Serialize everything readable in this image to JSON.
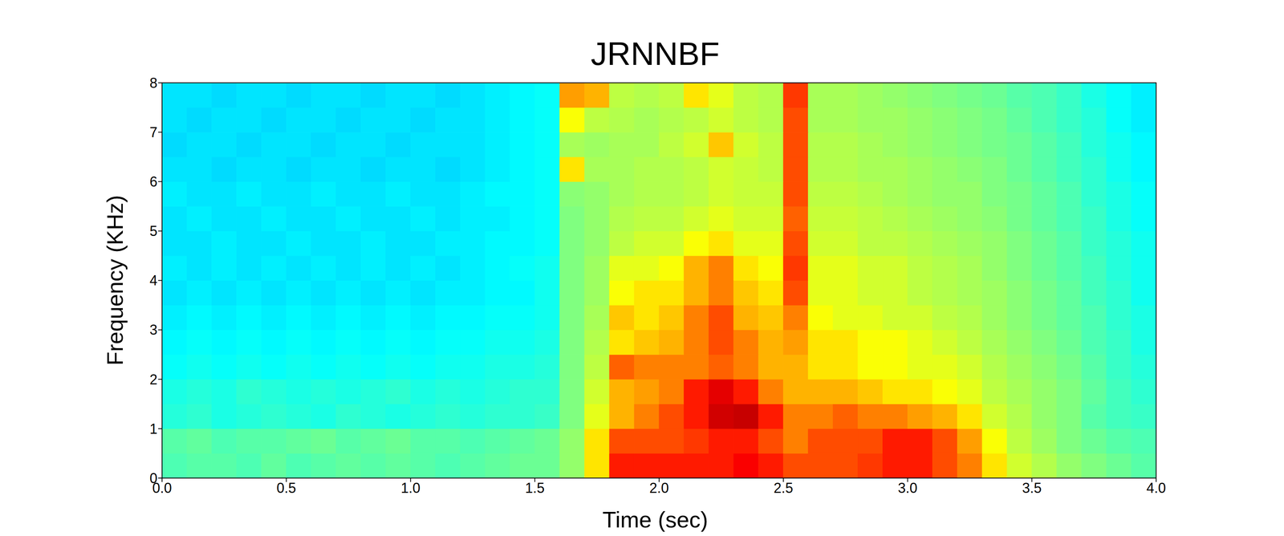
{
  "chart_data": {
    "type": "heatmap",
    "title": "JRNNBF",
    "x_label": "Time (sec)",
    "y_label": "Frequency (KHz)",
    "xlim": [
      0,
      4
    ],
    "ylim": [
      0,
      8
    ],
    "xticks": [
      {
        "value": 0,
        "label": "0.0"
      },
      0.5,
      {
        "value": 1,
        "label": "1.0"
      },
      1.5,
      {
        "value": 2,
        "label": "2.0"
      },
      2.5,
      {
        "value": 3,
        "label": "3.0"
      },
      3.5,
      {
        "value": 4,
        "label": "4.0"
      }
    ],
    "yticks": [
      0,
      1,
      2,
      3,
      4,
      5,
      6,
      7,
      8
    ],
    "x_bins": [
      0,
      0.1,
      0.2,
      0.3,
      0.4,
      0.5,
      0.6,
      0.7,
      0.8,
      0.9,
      1.0,
      1.1,
      1.2,
      1.3,
      1.4,
      1.5,
      1.6,
      1.7,
      1.8,
      1.9,
      2.0,
      2.1,
      2.2,
      2.3,
      2.4,
      2.5,
      2.6,
      2.7,
      2.8,
      2.9,
      3.0,
      3.1,
      3.2,
      3.3,
      3.4,
      3.5,
      3.6,
      3.7,
      3.8,
      3.9,
      4.0
    ],
    "y_bins": [
      0,
      0.5,
      1,
      1.5,
      2,
      2.5,
      3,
      3.5,
      4,
      4.5,
      5,
      5.5,
      6,
      6.5,
      7,
      7.5,
      8
    ],
    "color_range": [
      0,
      10
    ],
    "cells": [
      [
        4.5,
        4.6,
        4.6,
        4.5,
        4.7,
        4.5,
        4.6,
        4.7,
        4.6,
        4.7,
        4.6,
        4.5,
        4.6,
        4.7,
        4.8,
        4.8,
        5.2,
        6.5,
        8.5,
        8.5,
        8.5,
        8.5,
        8.5,
        8.8,
        8.5,
        8.0,
        8.0,
        8.0,
        8.2,
        8.5,
        8.5,
        8.0,
        7.5,
        6.5,
        5.8,
        5.5,
        5.2,
        5.0,
        4.8,
        4.6
      ],
      [
        4.6,
        4.7,
        4.5,
        4.6,
        4.6,
        4.7,
        4.8,
        4.6,
        4.7,
        4.8,
        4.6,
        4.6,
        4.5,
        4.6,
        4.7,
        4.8,
        5.2,
        6.5,
        8.0,
        8.0,
        8.0,
        8.2,
        8.5,
        8.5,
        8.0,
        7.5,
        8.0,
        8.0,
        8.0,
        8.5,
        8.5,
        8.0,
        7.2,
        6.2,
        5.6,
        5.3,
        5.0,
        4.8,
        4.6,
        4.5
      ],
      [
        4.1,
        4.2,
        4.0,
        4.1,
        4.2,
        4.1,
        4.0,
        4.2,
        4.1,
        4.0,
        4.1,
        4.2,
        4.1,
        4.2,
        4.2,
        4.3,
        5.0,
        6.0,
        7.0,
        7.5,
        8.0,
        8.5,
        9.2,
        9.3,
        8.5,
        7.5,
        7.5,
        7.8,
        7.5,
        7.5,
        7.2,
        7.0,
        6.5,
        5.8,
        5.5,
        5.2,
        5.0,
        4.6,
        4.4,
        4.3
      ],
      [
        4.0,
        4.1,
        4.0,
        4.2,
        4.1,
        4.0,
        4.1,
        4.0,
        4.1,
        4.2,
        4.0,
        4.1,
        4.0,
        4.1,
        4.2,
        4.2,
        5.0,
        5.8,
        7.0,
        7.2,
        7.5,
        8.5,
        9.0,
        8.5,
        7.5,
        7.0,
        7.0,
        7.0,
        6.8,
        6.5,
        6.5,
        6.2,
        6.0,
        5.6,
        5.4,
        5.2,
        5.0,
        4.7,
        4.4,
        4.2
      ],
      [
        3.8,
        3.9,
        3.8,
        3.9,
        3.8,
        3.9,
        3.8,
        3.9,
        3.8,
        3.9,
        3.8,
        3.9,
        3.9,
        4.0,
        4.0,
        4.1,
        5.0,
        5.6,
        7.8,
        7.5,
        7.5,
        7.5,
        7.8,
        7.5,
        7.0,
        7.0,
        6.5,
        6.5,
        6.2,
        6.2,
        6.0,
        6.0,
        5.8,
        5.5,
        5.3,
        5.1,
        4.9,
        4.6,
        4.3,
        4.1
      ],
      [
        3.7,
        3.8,
        3.7,
        3.8,
        3.7,
        3.8,
        3.7,
        3.8,
        3.7,
        3.8,
        3.7,
        3.8,
        3.8,
        3.9,
        3.9,
        4.0,
        5.0,
        5.5,
        6.5,
        6.8,
        7.0,
        7.5,
        8.0,
        7.5,
        7.0,
        7.2,
        6.5,
        6.5,
        6.2,
        6.2,
        6.0,
        5.8,
        5.6,
        5.4,
        5.2,
        5.0,
        4.8,
        4.5,
        4.3,
        4.0
      ],
      [
        3.6,
        3.7,
        3.6,
        3.7,
        3.6,
        3.7,
        3.6,
        3.7,
        3.6,
        3.7,
        3.6,
        3.7,
        3.7,
        3.8,
        3.8,
        3.9,
        5.0,
        5.4,
        6.8,
        6.5,
        6.8,
        7.5,
        8.0,
        7.0,
        6.8,
        7.5,
        6.2,
        6.0,
        6.0,
        5.8,
        5.8,
        5.6,
        5.5,
        5.3,
        5.1,
        4.9,
        4.7,
        4.5,
        4.2,
        4.0
      ],
      [
        3.5,
        3.6,
        3.5,
        3.6,
        3.5,
        3.6,
        3.5,
        3.6,
        3.5,
        3.6,
        3.5,
        3.6,
        3.6,
        3.7,
        3.7,
        3.9,
        5.0,
        5.3,
        6.2,
        6.5,
        6.5,
        7.0,
        7.5,
        6.8,
        6.5,
        8.0,
        6.0,
        6.0,
        5.8,
        5.8,
        5.6,
        5.5,
        5.4,
        5.3,
        5.1,
        4.9,
        4.7,
        4.4,
        4.2,
        3.9
      ],
      [
        3.6,
        3.5,
        3.6,
        3.5,
        3.6,
        3.5,
        3.6,
        3.5,
        3.6,
        3.5,
        3.6,
        3.5,
        3.6,
        3.7,
        3.8,
        3.9,
        5.0,
        5.3,
        6.0,
        6.0,
        6.2,
        7.0,
        7.5,
        6.5,
        6.2,
        8.2,
        6.0,
        6.0,
        5.8,
        5.8,
        5.6,
        5.5,
        5.4,
        5.2,
        5.0,
        4.8,
        4.6,
        4.4,
        4.1,
        3.9
      ],
      [
        3.5,
        3.5,
        3.6,
        3.5,
        3.5,
        3.6,
        3.5,
        3.5,
        3.6,
        3.5,
        3.5,
        3.6,
        3.6,
        3.7,
        3.7,
        3.8,
        5.0,
        5.2,
        5.6,
        5.8,
        5.8,
        6.2,
        6.5,
        6.0,
        6.0,
        8.0,
        5.8,
        5.8,
        5.6,
        5.6,
        5.5,
        5.4,
        5.3,
        5.2,
        5.0,
        4.8,
        4.6,
        4.3,
        4.1,
        3.9
      ],
      [
        3.5,
        3.6,
        3.5,
        3.5,
        3.6,
        3.5,
        3.5,
        3.6,
        3.5,
        3.5,
        3.6,
        3.5,
        3.6,
        3.6,
        3.7,
        3.8,
        5.0,
        5.2,
        5.5,
        5.6,
        5.6,
        5.8,
        6.0,
        5.8,
        5.8,
        7.8,
        5.7,
        5.7,
        5.6,
        5.5,
        5.4,
        5.3,
        5.2,
        5.1,
        4.9,
        4.7,
        4.5,
        4.3,
        4.0,
        3.8
      ],
      [
        3.6,
        3.5,
        3.5,
        3.6,
        3.5,
        3.5,
        3.6,
        3.5,
        3.5,
        3.6,
        3.5,
        3.5,
        3.6,
        3.7,
        3.7,
        3.8,
        5.1,
        5.2,
        5.4,
        5.5,
        5.5,
        5.6,
        5.8,
        5.7,
        5.7,
        8.0,
        5.6,
        5.6,
        5.5,
        5.4,
        5.3,
        5.2,
        5.2,
        5.0,
        4.9,
        4.7,
        4.5,
        4.2,
        4.0,
        3.8
      ],
      [
        3.5,
        3.5,
        3.4,
        3.5,
        3.5,
        3.4,
        3.5,
        3.5,
        3.4,
        3.5,
        3.5,
        3.4,
        3.5,
        3.6,
        3.7,
        3.8,
        6.5,
        5.4,
        5.4,
        5.5,
        5.5,
        5.6,
        5.8,
        5.7,
        5.6,
        8.0,
        5.5,
        5.5,
        5.4,
        5.4,
        5.3,
        5.2,
        5.1,
        5.0,
        4.8,
        4.6,
        4.4,
        4.2,
        3.9,
        3.7
      ],
      [
        3.4,
        3.5,
        3.5,
        3.4,
        3.5,
        3.5,
        3.4,
        3.5,
        3.5,
        3.4,
        3.5,
        3.5,
        3.5,
        3.6,
        3.7,
        3.8,
        5.4,
        5.3,
        5.4,
        5.4,
        5.6,
        5.8,
        6.8,
        5.8,
        5.6,
        8.0,
        5.5,
        5.5,
        5.4,
        5.3,
        5.2,
        5.1,
        5.0,
        4.9,
        4.8,
        4.6,
        4.4,
        4.1,
        3.9,
        3.7
      ],
      [
        3.5,
        3.4,
        3.5,
        3.5,
        3.4,
        3.5,
        3.5,
        3.4,
        3.5,
        3.5,
        3.4,
        3.5,
        3.5,
        3.6,
        3.7,
        3.8,
        6.2,
        5.6,
        5.5,
        5.4,
        5.5,
        5.6,
        5.8,
        5.6,
        5.5,
        8.0,
        5.4,
        5.4,
        5.3,
        5.3,
        5.2,
        5.1,
        5.0,
        4.9,
        4.7,
        4.5,
        4.3,
        4.1,
        3.8,
        3.6
      ],
      [
        3.5,
        3.5,
        3.4,
        3.5,
        3.5,
        3.4,
        3.5,
        3.5,
        3.4,
        3.5,
        3.5,
        3.4,
        3.5,
        3.6,
        3.7,
        3.8,
        7.2,
        7.0,
        5.6,
        5.5,
        5.6,
        6.5,
        6.0,
        5.6,
        5.5,
        8.2,
        5.4,
        5.4,
        5.3,
        5.2,
        5.1,
        5.0,
        4.9,
        4.8,
        4.6,
        4.5,
        4.3,
        4.0,
        3.8,
        3.6
      ]
    ]
  }
}
